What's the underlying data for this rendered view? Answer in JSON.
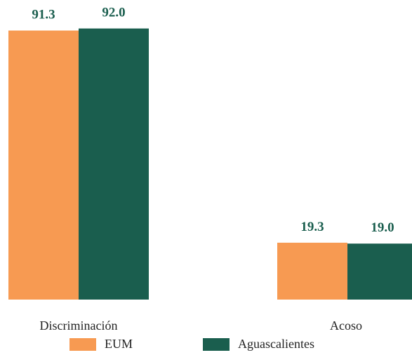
{
  "chart_data": {
    "type": "bar",
    "categories": [
      "Discriminación",
      "Acoso"
    ],
    "series": [
      {
        "name": "EUM",
        "values": [
          91.3,
          19.3
        ],
        "color": "#F79A52"
      },
      {
        "name": "Aguascalientes",
        "values": [
          92.0,
          19.0
        ],
        "color": "#1A5E4E"
      }
    ],
    "value_labels": [
      [
        "91.3",
        "19.3"
      ],
      [
        "92.0",
        "19.0"
      ]
    ],
    "value_label_color": "#1A5E4E",
    "ylim": [
      0,
      100
    ],
    "grid": false,
    "legend": "bottom"
  }
}
